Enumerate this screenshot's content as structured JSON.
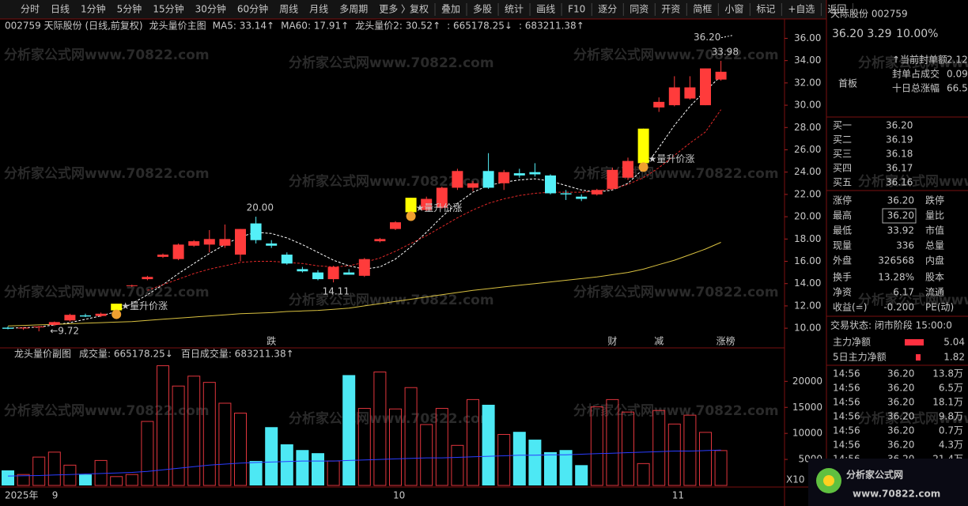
{
  "toolbar": {
    "left": [
      "分时",
      "日线",
      "1分钟",
      "5分钟",
      "15分钟",
      "30分钟",
      "60分钟",
      "周线",
      "月线",
      "多周期",
      "更多 〉"
    ],
    "right": [
      "复权",
      "叠加",
      "多股",
      "统计",
      "画线",
      "F10",
      "逐分",
      "同资",
      "开资",
      "简框",
      "小窗",
      "标记",
      "+自选",
      "返回"
    ]
  },
  "header": {
    "code_name": "002759 天际股份 (日线,前复权)",
    "indicator": "龙头量价主图",
    "ma5": "MA5: 33.14↑",
    "ma60": "MA60: 17.91↑",
    "ltp2": "龙头量价2: 30.52↑",
    "v1": ": 665178.25↓",
    "v2": ": 683211.38↑"
  },
  "sub_header": {
    "indicator": "龙头量价副图",
    "volume": "成交量: 665178.25↓",
    "hundred": "百日成交量: 683211.38↑",
    "unit": "X10"
  },
  "watermark": "分析家公式网www.70822.com",
  "chart_data": {
    "type": "candlestick",
    "up_color": "#ff3b3b",
    "down_color": "#54f0f8",
    "highlight_color": "#ffff00",
    "highlight": [
      7,
      26,
      41
    ],
    "candles": [
      {
        "o": 10.05,
        "h": 10.15,
        "l": 9.9,
        "c": 9.95
      },
      {
        "o": 10.0,
        "h": 10.1,
        "l": 9.85,
        "c": 10.05
      },
      {
        "o": 10.1,
        "h": 10.2,
        "l": 9.72,
        "c": 10.15
      },
      {
        "o": 10.3,
        "h": 10.6,
        "l": 10.2,
        "c": 10.55
      },
      {
        "o": 10.7,
        "h": 11.3,
        "l": 10.6,
        "c": 11.2
      },
      {
        "o": 11.15,
        "h": 11.3,
        "l": 11.0,
        "c": 11.05
      },
      {
        "o": 11.1,
        "h": 11.4,
        "l": 11.0,
        "c": 11.3
      },
      {
        "o": 11.6,
        "h": 12.2,
        "l": 11.6,
        "c": 12.2
      },
      {
        "o": 13.8,
        "h": 13.9,
        "l": 13.7,
        "c": 13.85
      },
      {
        "o": 14.4,
        "h": 14.7,
        "l": 14.3,
        "c": 14.6
      },
      {
        "o": 16.4,
        "h": 16.7,
        "l": 16.3,
        "c": 16.6
      },
      {
        "o": 16.2,
        "h": 17.6,
        "l": 16.1,
        "c": 17.5
      },
      {
        "o": 17.4,
        "h": 17.9,
        "l": 17.3,
        "c": 17.8
      },
      {
        "o": 17.5,
        "h": 18.8,
        "l": 16.8,
        "c": 18.0
      },
      {
        "o": 17.4,
        "h": 19.3,
        "l": 17.2,
        "c": 18.0
      },
      {
        "o": 16.6,
        "h": 18.9,
        "l": 16.0,
        "c": 18.9
      },
      {
        "o": 19.4,
        "h": 20.0,
        "l": 17.6,
        "c": 17.9
      },
      {
        "o": 17.6,
        "h": 17.9,
        "l": 17.2,
        "c": 17.4
      },
      {
        "o": 16.6,
        "h": 16.8,
        "l": 15.7,
        "c": 15.8
      },
      {
        "o": 15.3,
        "h": 15.5,
        "l": 15.0,
        "c": 15.1
      },
      {
        "o": 15.0,
        "h": 15.2,
        "l": 14.3,
        "c": 14.4
      },
      {
        "o": 14.4,
        "h": 15.6,
        "l": 14.11,
        "c": 15.5
      },
      {
        "o": 15.0,
        "h": 15.3,
        "l": 14.8,
        "c": 14.8
      },
      {
        "o": 14.7,
        "h": 16.3,
        "l": 14.6,
        "c": 16.2
      },
      {
        "o": 17.8,
        "h": 18.1,
        "l": 17.7,
        "c": 18.0
      },
      {
        "o": 18.9,
        "h": 19.6,
        "l": 18.8,
        "c": 19.5
      },
      {
        "o": 20.4,
        "h": 21.7,
        "l": 20.4,
        "c": 21.7
      },
      {
        "o": 20.6,
        "h": 21.8,
        "l": 20.5,
        "c": 21.6
      },
      {
        "o": 20.8,
        "h": 22.7,
        "l": 20.7,
        "c": 22.6
      },
      {
        "o": 22.6,
        "h": 24.3,
        "l": 22.4,
        "c": 24.1
      },
      {
        "o": 22.6,
        "h": 23.2,
        "l": 22.3,
        "c": 23.0
      },
      {
        "o": 24.1,
        "h": 25.7,
        "l": 22.5,
        "c": 22.6
      },
      {
        "o": 23.0,
        "h": 24.2,
        "l": 22.4,
        "c": 24.0
      },
      {
        "o": 23.9,
        "h": 24.3,
        "l": 23.5,
        "c": 23.7
      },
      {
        "o": 24.0,
        "h": 24.8,
        "l": 23.6,
        "c": 23.8
      },
      {
        "o": 23.7,
        "h": 23.8,
        "l": 22.0,
        "c": 22.1
      },
      {
        "o": 22.1,
        "h": 22.4,
        "l": 21.5,
        "c": 22.0
      },
      {
        "o": 21.8,
        "h": 22.0,
        "l": 21.4,
        "c": 21.6
      },
      {
        "o": 22.0,
        "h": 22.5,
        "l": 21.9,
        "c": 22.4
      },
      {
        "o": 22.5,
        "h": 24.4,
        "l": 22.4,
        "c": 24.2
      },
      {
        "o": 23.5,
        "h": 25.3,
        "l": 23.3,
        "c": 25.0
      },
      {
        "o": 24.8,
        "h": 27.9,
        "l": 24.8,
        "c": 27.9
      },
      {
        "o": 29.8,
        "h": 30.7,
        "l": 29.4,
        "c": 30.3
      },
      {
        "o": 30.0,
        "h": 32.6,
        "l": 29.9,
        "c": 31.6
      },
      {
        "o": 30.6,
        "h": 32.6,
        "l": 30.5,
        "c": 31.6
      },
      {
        "o": 30.0,
        "h": 33.3,
        "l": 30.0,
        "c": 33.3
      },
      {
        "o": 32.3,
        "h": 33.98,
        "l": 32.2,
        "c": 33.0
      }
    ],
    "lines": [
      {
        "color": "#ffffff",
        "dash": true,
        "values": [
          10.0,
          10.05,
          10.1,
          10.3,
          10.5,
          10.8,
          11.1,
          11.5,
          12.2,
          13.0,
          13.9,
          14.9,
          15.8,
          16.7,
          17.5,
          18.2,
          18.6,
          18.5,
          18.1,
          17.5,
          16.8,
          16.1,
          15.6,
          15.3,
          15.5,
          16.2,
          17.3,
          18.6,
          20.0,
          21.2,
          22.2,
          22.8,
          23.1,
          23.3,
          23.4,
          23.2,
          22.8,
          22.4,
          22.2,
          22.4,
          23.0,
          24.3,
          26.2,
          28.2,
          29.9,
          31.3,
          32.6
        ]
      },
      {
        "color": "#e02828",
        "dash": true,
        "values": [
          null,
          null,
          null,
          null,
          null,
          null,
          null,
          null,
          null,
          13.4,
          13.9,
          14.4,
          14.9,
          15.3,
          15.6,
          15.9,
          16.0,
          16.0,
          15.9,
          15.8,
          15.6,
          15.5,
          15.6,
          15.9,
          16.3,
          16.9,
          17.6,
          18.3,
          19.1,
          19.9,
          20.6,
          21.2,
          21.6,
          21.9,
          22.1,
          22.2,
          22.2,
          22.2,
          22.3,
          22.5,
          22.9,
          23.5,
          24.4,
          25.5,
          26.6,
          27.6,
          29.6
        ]
      },
      {
        "color": "#d8c040",
        "dash": false,
        "values": [
          10.2,
          10.25,
          10.3,
          10.35,
          10.4,
          10.45,
          10.5,
          10.55,
          10.6,
          10.7,
          10.8,
          10.9,
          11.0,
          11.1,
          11.2,
          11.3,
          11.35,
          11.4,
          11.5,
          11.55,
          11.6,
          11.7,
          11.8,
          12.0,
          12.2,
          12.4,
          12.6,
          12.8,
          13.0,
          13.2,
          13.4,
          13.55,
          13.7,
          13.85,
          14.0,
          14.15,
          14.3,
          14.45,
          14.6,
          14.8,
          15.0,
          15.3,
          15.7,
          16.1,
          16.6,
          17.1,
          17.7
        ]
      }
    ],
    "ylim": [
      9.3,
      36.6
    ],
    "yticks": [
      {
        "value": 10,
        "label": "10.00"
      },
      {
        "value": 12,
        "label": "12.00"
      },
      {
        "value": 14,
        "label": "14.00"
      },
      {
        "value": 16,
        "label": "16.00"
      },
      {
        "value": 18,
        "label": "18.00"
      },
      {
        "value": 20,
        "label": "20.00"
      },
      {
        "value": 22,
        "label": "22.00"
      },
      {
        "value": 24,
        "label": "24.00"
      },
      {
        "value": 26,
        "label": "26.00"
      },
      {
        "value": 28,
        "label": "28.00"
      },
      {
        "value": 30,
        "label": "30.00"
      },
      {
        "value": 32,
        "label": "32.00"
      },
      {
        "value": 34,
        "label": "34.00"
      },
      {
        "value": 36,
        "label": "36.00"
      }
    ],
    "annotations": [
      {
        "index": 16,
        "value": 20.0,
        "label": "20.00",
        "pos": "above"
      },
      {
        "index": 21,
        "value": 14.11,
        "label": "14.11",
        "pos": "below"
      },
      {
        "index": 46,
        "value": 33.98,
        "label": "33.98",
        "pos": "above"
      },
      {
        "index": 2,
        "value": 9.72,
        "label": "←9.72",
        "pos": "right"
      },
      {
        "index": 45,
        "value": 36.2,
        "label": "36.20",
        "pos": "arrow"
      }
    ],
    "signals": {
      "label": "★量升价涨",
      "indices": [
        7,
        26,
        41
      ]
    },
    "events": [
      {
        "index": 17,
        "label": "跌",
        "color": "#40d040"
      },
      {
        "index": 39,
        "label": "财",
        "color": "#60c8ff"
      },
      {
        "index": 42,
        "label": "减",
        "color": "#40d040"
      },
      {
        "index": 46,
        "label": "涨榜",
        "color": "#ff4040"
      }
    ],
    "date_labels": [
      {
        "index": 0,
        "label": "2025年"
      },
      {
        "index": 3,
        "label": "9"
      },
      {
        "index": 25,
        "label": "10"
      },
      {
        "index": 43,
        "label": "11"
      }
    ],
    "volume": {
      "values": [
        2900,
        2100,
        5450,
        6400,
        3900,
        2100,
        4800,
        1700,
        2100,
        12300,
        23000,
        19100,
        21000,
        19800,
        15800,
        13900,
        4700,
        11200,
        7900,
        6800,
        6200,
        4700,
        21200,
        14800,
        21800,
        14700,
        18800,
        11700,
        14800,
        7700,
        16500,
        15500,
        9800,
        10300,
        8800,
        6400,
        6800,
        3900,
        15100,
        16500,
        14100,
        4200,
        14400,
        11800,
        13500,
        10200,
        6700
      ],
      "ma": {
        "color": "#2a3cff",
        "values": [
          1800,
          1850,
          1900,
          2000,
          2100,
          2200,
          2300,
          2400,
          2500,
          2700,
          3000,
          3300,
          3600,
          3900,
          4100,
          4300,
          4400,
          4500,
          4600,
          4700,
          4700,
          4700,
          4800,
          4900,
          5000,
          5100,
          5200,
          5300,
          5300,
          5400,
          5500,
          5600,
          5700,
          5800,
          5800,
          5900,
          5900,
          6000,
          6100,
          6200,
          6300,
          6400,
          6500,
          6600,
          6600,
          6700,
          6800
        ]
      },
      "ylim": [
        0,
        24000
      ],
      "yticks": [
        5000,
        10000,
        15000,
        20000
      ]
    }
  },
  "panel": {
    "title": "天际股份 002759",
    "price": "36.20",
    "change": "3.29",
    "pct": "10.00%",
    "tag": "首板",
    "info": [
      [
        "↑当前封单额",
        "2.12"
      ],
      [
        "封单占成交",
        "0.09"
      ],
      [
        "十日总涨幅",
        "66.5"
      ]
    ],
    "book": [
      [
        "买一",
        "36.20"
      ],
      [
        "买二",
        "36.19"
      ],
      [
        "买三",
        "36.18"
      ],
      [
        "买四",
        "36.17"
      ],
      [
        "买五",
        "36.16"
      ]
    ],
    "stats": [
      {
        "cells": [
          "涨停",
          "36.20",
          "跌停"
        ],
        "color": "#ff3b3b"
      },
      {
        "cells": [
          "最高",
          "36.20",
          "量比"
        ],
        "color": "#ff3b3b"
      },
      {
        "cells": [
          "最低",
          "33.92",
          "市值"
        ],
        "color": "#ff3b3b"
      },
      {
        "cells": [
          "现量",
          "336",
          "总量"
        ],
        "color": "#c060ff"
      },
      {
        "cells": [
          "外盘",
          "326568",
          "内盘"
        ],
        "color": "#ff3b3b"
      }
    ],
    "stats2": [
      [
        "换手",
        "13.28%",
        "股本"
      ],
      [
        "净资",
        "6.17",
        "流通"
      ],
      [
        "收益(=)",
        "-0.200",
        "PE(动)"
      ]
    ],
    "status": "交易状态: 闭市阶段 15:00:0",
    "flow": [
      [
        "主力净额",
        "5.04"
      ],
      [
        "5日主力净额",
        "1.82"
      ]
    ],
    "trades": [
      [
        "14:56",
        "36.20",
        "13.8万"
      ],
      [
        "14:56",
        "36.20",
        "6.5万"
      ],
      [
        "14:56",
        "36.20",
        "18.1万"
      ],
      [
        "14:56",
        "36.20",
        "9.8万"
      ],
      [
        "14:56",
        "36.20",
        "0.7万"
      ],
      [
        "14:56",
        "36.20",
        "4.3万"
      ],
      [
        "14:56",
        "36.20",
        "21.4万"
      ]
    ],
    "logo": "分析家公式网",
    "logo_url": "www.70822.com"
  }
}
